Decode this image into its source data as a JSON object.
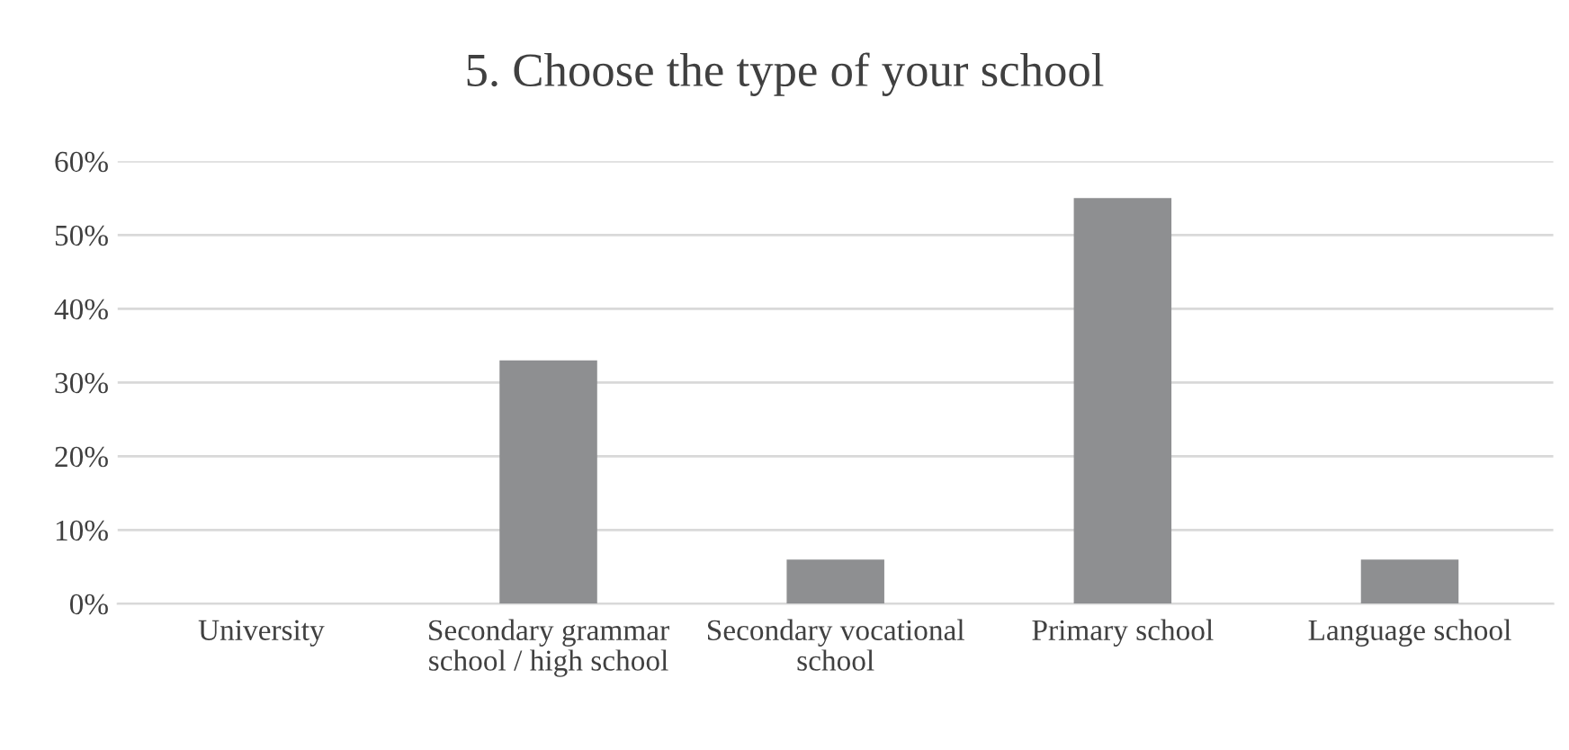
{
  "chart_data": {
    "type": "bar",
    "title": "5. Choose the type of your school",
    "categories": [
      "University",
      "Secondary grammar school / high school",
      "Secondary vocational school",
      "Primary school",
      "Language school"
    ],
    "values": [
      0,
      33,
      6,
      55,
      6
    ],
    "color": "#8e8f91",
    "ylim": [
      0,
      60
    ],
    "yticks": [
      {
        "value": 0,
        "label": "0%"
      },
      {
        "value": 10,
        "label": "10%"
      },
      {
        "value": 20,
        "label": "20%"
      },
      {
        "value": 30,
        "label": "30%"
      },
      {
        "value": 40,
        "label": "40%"
      },
      {
        "value": 50,
        "label": "50%"
      },
      {
        "value": 60,
        "label": "60%"
      }
    ],
    "grid": "y",
    "legend": false
  }
}
